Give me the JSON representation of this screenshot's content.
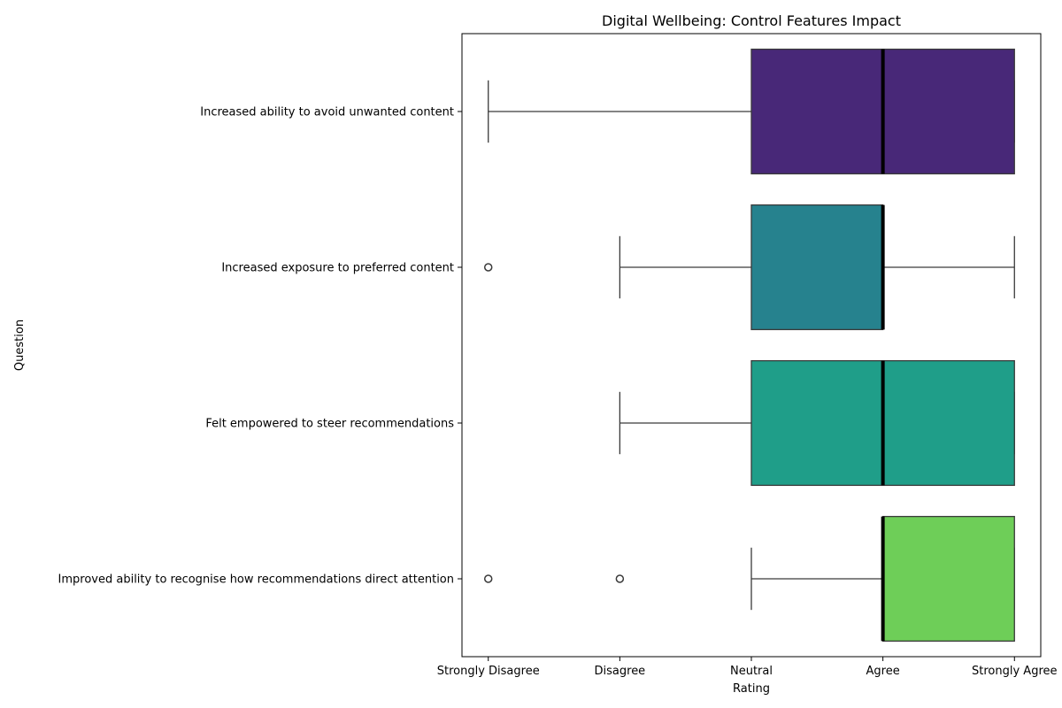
{
  "chart_data": {
    "type": "box",
    "orientation": "horizontal",
    "title": "Digital Wellbeing: Control Features Impact",
    "xlabel": "Rating",
    "ylabel": "Question",
    "xlim": [
      0.8,
      5.2
    ],
    "scale_values": [
      1,
      2,
      3,
      4,
      5
    ],
    "x_tick_labels": [
      "Strongly Disagree",
      "Disagree",
      "Neutral",
      "Agree",
      "Strongly Agree"
    ],
    "grid": false,
    "legend": "none",
    "categories": [
      "Increased ability to avoid unwanted content",
      "Increased exposure to preferred content",
      "Felt empowered to steer recommendations",
      "Improved ability to recognise how recommendations direct attention"
    ],
    "boxes": [
      {
        "category": "Increased ability to avoid unwanted content",
        "whisker_low": 1,
        "q1": 3,
        "median": 4,
        "q3": 5,
        "whisker_high": 5,
        "outliers": [],
        "color": "#482878"
      },
      {
        "category": "Increased exposure to preferred content",
        "whisker_low": 2,
        "q1": 3,
        "median": 4,
        "q3": 4,
        "whisker_high": 5,
        "outliers": [
          1
        ],
        "color": "#26828e"
      },
      {
        "category": "Felt empowered to steer recommendations",
        "whisker_low": 2,
        "q1": 3,
        "median": 4,
        "q3": 5,
        "whisker_high": 5,
        "outliers": [],
        "color": "#1f9e89"
      },
      {
        "category": "Improved ability to recognise how recommendations direct attention",
        "whisker_low": 3,
        "q1": 4,
        "median": 4,
        "q3": 5,
        "whisker_high": 5,
        "outliers": [
          1,
          2
        ],
        "color": "#6ece58"
      }
    ]
  }
}
